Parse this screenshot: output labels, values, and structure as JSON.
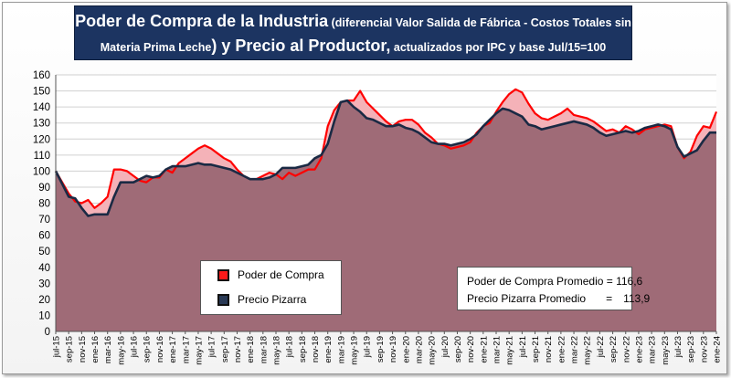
{
  "title": {
    "line1_bold": "Poder de Compra de la Industria",
    "line1_normal": " (diferencial Valor Salida de Fábrica - Costos Totales sin",
    "line2_normal_a": "Materia Prima Leche",
    "line2_bold": ") y Precio al Productor,",
    "line2_normal_b": " actualizados por IPC y base Jul/15=100"
  },
  "legend": {
    "item1": "Poder de Compra",
    "item2": "Precio Pizarra"
  },
  "stats": {
    "row1_label": "Poder de Compra Promedio =",
    "row1_value": "116,6",
    "row2_label": "Precio Pizarra Promedio",
    "row2_eq": "=",
    "row2_value": "113,9"
  },
  "colors": {
    "poder_line": "#ff0000",
    "poder_fill": "#f4b2b8",
    "pizarra_line": "#1a2a44",
    "pizarra_fill": "#9f6b77",
    "title_bg": "#1c3461"
  },
  "chart_data": {
    "type": "area",
    "ylim": [
      0,
      160
    ],
    "yticks": [
      0,
      10,
      20,
      30,
      40,
      50,
      60,
      70,
      80,
      90,
      100,
      110,
      120,
      130,
      140,
      150,
      160
    ],
    "grid": true,
    "legend_position": "bottom-left",
    "x": [
      "jul-15",
      "ago-15",
      "sep-15",
      "oct-15",
      "nov-15",
      "dic-15",
      "ene-16",
      "feb-16",
      "mar-16",
      "abr-16",
      "may-16",
      "jun-16",
      "jul-16",
      "ago-16",
      "sep-16",
      "oct-16",
      "nov-16",
      "dic-16",
      "ene-17",
      "feb-17",
      "mar-17",
      "abr-17",
      "may-17",
      "jun-17",
      "jul-17",
      "ago-17",
      "sep-17",
      "oct-17",
      "nov-17",
      "dic-17",
      "ene-18",
      "feb-18",
      "mar-18",
      "abr-18",
      "may-18",
      "jun-18",
      "jul-18",
      "ago-18",
      "sep-18",
      "oct-18",
      "nov-18",
      "dic-18",
      "ene-19",
      "feb-19",
      "mar-19",
      "abr-19",
      "may-19",
      "jun-19",
      "jul-19",
      "ago-19",
      "sep-19",
      "oct-19",
      "nov-19",
      "dic-19",
      "ene-20",
      "feb-20",
      "mar-20",
      "abr-20",
      "may-20",
      "jun-20",
      "jul-20",
      "ago-20",
      "sep-20",
      "oct-20",
      "nov-20",
      "dic-20",
      "ene-21",
      "feb-21",
      "mar-21",
      "abr-21",
      "may-21",
      "jun-21",
      "jul-21",
      "ago-21",
      "sep-21",
      "oct-21",
      "nov-21",
      "dic-21",
      "ene-22",
      "feb-22",
      "mar-22",
      "abr-22",
      "may-22",
      "jun-22",
      "jul-22",
      "ago-22",
      "sep-22",
      "oct-22",
      "nov-22",
      "dic-22",
      "ene-23",
      "feb-23",
      "mar-23",
      "abr-23",
      "may-23",
      "jun-23",
      "jul-23",
      "ago-23",
      "sep-23",
      "oct-23",
      "nov-23",
      "dic-23",
      "ene-24"
    ],
    "tick_labels": [
      "jul-15",
      "sep-15",
      "nov-15",
      "ene-16",
      "mar-16",
      "may-16",
      "jul-16",
      "sep-16",
      "nov-16",
      "ene-17",
      "mar-17",
      "may-17",
      "jul-17",
      "sep-17",
      "nov-17",
      "ene-18",
      "mar-18",
      "may-18",
      "jul-18",
      "sep-18",
      "nov-18",
      "ene-19",
      "mar-19",
      "may-19",
      "jul-19",
      "sep-19",
      "nov-19",
      "ene-20",
      "mar-20",
      "may-20",
      "jul-20",
      "sep-20",
      "nov-20",
      "ene-21",
      "mar-21",
      "may-21",
      "jul-21",
      "sep-21",
      "nov-21",
      "ene-22",
      "mar-22",
      "may-22",
      "jul-22",
      "sep-22",
      "nov-22",
      "ene-23",
      "mar-23",
      "may-23",
      "jul-23",
      "sep-23",
      "nov-23",
      "ene-24"
    ],
    "series": [
      {
        "name": "Poder de Compra",
        "values": [
          100,
          93,
          86,
          81,
          80,
          82,
          77,
          80,
          84,
          101,
          101,
          100,
          97,
          94,
          93,
          96,
          96,
          101,
          99,
          105,
          108,
          111,
          114,
          116,
          114,
          111,
          108,
          106,
          101,
          97,
          95,
          95,
          97,
          99,
          98,
          95,
          99,
          97,
          99,
          101,
          101,
          108,
          128,
          138,
          143,
          144,
          144,
          150,
          143,
          139,
          135,
          131,
          128,
          131,
          132,
          132,
          129,
          124,
          121,
          117,
          116,
          114,
          115,
          116,
          118,
          124,
          128,
          130,
          137,
          143,
          148,
          151,
          149,
          142,
          136,
          133,
          132,
          134,
          136,
          139,
          135,
          134,
          133,
          131,
          128,
          125,
          126,
          124,
          128,
          126,
          123,
          126,
          127,
          128,
          129,
          128,
          115,
          108,
          112,
          122,
          128,
          127,
          137
        ],
        "visible": true
      },
      {
        "name": "Precio Pizarra",
        "values": [
          100,
          92,
          84,
          83,
          77,
          72,
          73,
          73,
          73,
          84,
          93,
          93,
          93,
          95,
          97,
          96,
          97,
          101,
          103,
          103,
          103,
          104,
          105,
          104,
          104,
          103,
          102,
          101,
          99,
          97,
          95,
          95,
          95,
          96,
          98,
          102,
          102,
          102,
          103,
          104,
          108,
          110,
          117,
          131,
          143,
          144,
          140,
          137,
          133,
          132,
          130,
          128,
          128,
          129,
          127,
          126,
          124,
          121,
          118,
          117,
          117,
          116,
          117,
          118,
          120,
          123,
          128,
          132,
          136,
          139,
          138,
          136,
          134,
          129,
          128,
          126,
          127,
          128,
          129,
          130,
          131,
          130,
          129,
          127,
          124,
          122,
          123,
          124,
          125,
          124,
          125,
          127,
          128,
          129,
          128,
          126,
          115,
          109,
          111,
          113,
          119,
          124,
          124
        ],
        "visible": true
      }
    ],
    "annotations": [
      "Poder de Compra Promedio = 116,6",
      "Precio Pizarra Promedio = 113,9"
    ]
  }
}
